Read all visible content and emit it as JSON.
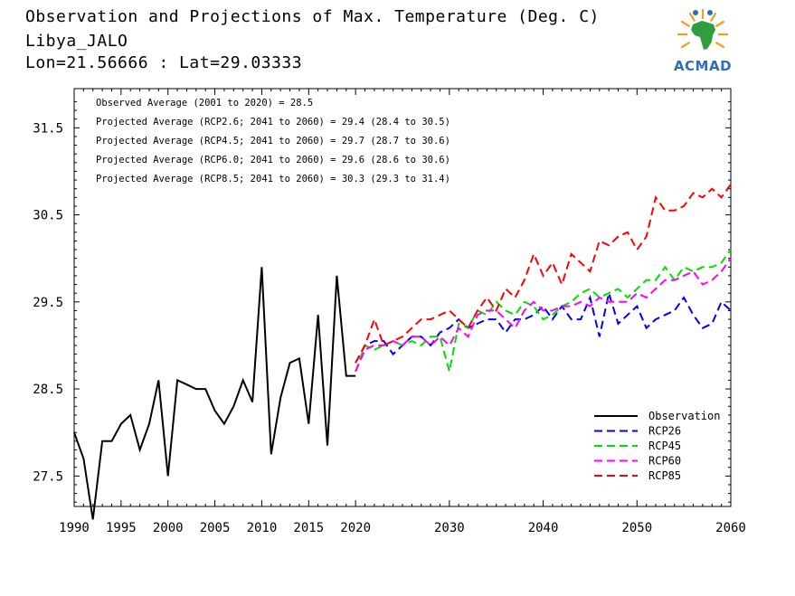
{
  "header": {
    "title": "Observation and Projections of Max. Temperature (Deg. C)",
    "station": "Libya_JALO",
    "coords": "Lon=21.56666 : Lat=29.03333"
  },
  "logo": {
    "text": "ACMAD"
  },
  "colors": {
    "observation": "#000000",
    "rcp26": "#0000ff",
    "rcp45": "#00e000",
    "rcp60": "#ff00ff",
    "rcp85": "#ff0000"
  },
  "chart_data": {
    "type": "line",
    "title": "Observation and Projections of Max. Temperature (Deg. C)",
    "xlim": [
      1990,
      2060
    ],
    "ylim": [
      27.15,
      31.95
    ],
    "x_ticks": [
      1990,
      1995,
      2000,
      2005,
      2010,
      2015,
      2020,
      2030,
      2040,
      2050,
      2060
    ],
    "y_ticks": [
      27.5,
      28.5,
      29.5,
      30.5,
      31.5
    ],
    "y_tick_labels": [
      "27.5",
      "28.5",
      "29.5",
      "30.5",
      "31.5"
    ],
    "annotations": [
      "Observed Average (2001 to 2020) = 28.5",
      "Projected Average (RCP2.6; 2041 to 2060) = 29.4 (28.4 to 30.5)",
      "Projected Average (RCP4.5; 2041 to 2060) = 29.7 (28.7 to 30.6)",
      "Projected Average (RCP6.0; 2041 to 2060) = 29.6 (28.6 to 30.6)",
      "Projected Average (RCP8.5; 2041 to 2060) = 30.3 (29.3 to 31.4)"
    ],
    "legend_position": "bottom-right",
    "series": [
      {
        "name": "Observation",
        "style": "solid",
        "color": "#000000",
        "x": [
          1990,
          1991,
          1992,
          1993,
          1994,
          1995,
          1996,
          1997,
          1998,
          1999,
          2000,
          2001,
          2002,
          2003,
          2004,
          2005,
          2006,
          2007,
          2008,
          2009,
          2010,
          2011,
          2012,
          2013,
          2014,
          2015,
          2016,
          2017,
          2018,
          2019,
          2020
        ],
        "y": [
          28.0,
          27.7,
          27.0,
          27.9,
          27.9,
          28.1,
          28.2,
          27.8,
          28.1,
          28.6,
          27.5,
          28.6,
          28.55,
          28.5,
          28.5,
          28.25,
          28.1,
          28.3,
          28.6,
          28.35,
          29.9,
          27.75,
          28.4,
          28.8,
          28.85,
          28.1,
          29.35,
          27.85,
          29.8,
          28.65,
          28.65
        ]
      },
      {
        "name": "RCP26",
        "style": "dashed",
        "color": "#0000ff",
        "x": [
          2020,
          2021,
          2022,
          2023,
          2024,
          2025,
          2026,
          2027,
          2028,
          2029,
          2030,
          2031,
          2032,
          2033,
          2034,
          2035,
          2036,
          2037,
          2038,
          2039,
          2040,
          2041,
          2042,
          2043,
          2044,
          2045,
          2046,
          2047,
          2048,
          2049,
          2050,
          2051,
          2052,
          2053,
          2054,
          2055,
          2056,
          2057,
          2058,
          2059,
          2060
        ],
        "y": [
          28.8,
          29.0,
          29.05,
          29.05,
          28.9,
          29.0,
          29.1,
          29.1,
          29.0,
          29.15,
          29.2,
          29.3,
          29.2,
          29.25,
          29.3,
          29.3,
          29.15,
          29.3,
          29.3,
          29.35,
          29.45,
          29.3,
          29.45,
          29.3,
          29.3,
          29.55,
          29.1,
          29.6,
          29.25,
          29.35,
          29.45,
          29.2,
          29.3,
          29.35,
          29.4,
          29.55,
          29.35,
          29.2,
          29.25,
          29.5,
          29.4
        ]
      },
      {
        "name": "RCP45",
        "style": "dashed",
        "color": "#00e000",
        "x": [
          2020,
          2021,
          2022,
          2023,
          2024,
          2025,
          2026,
          2027,
          2028,
          2029,
          2030,
          2031,
          2032,
          2033,
          2034,
          2035,
          2036,
          2037,
          2038,
          2039,
          2040,
          2041,
          2042,
          2043,
          2044,
          2045,
          2046,
          2047,
          2048,
          2049,
          2050,
          2051,
          2052,
          2053,
          2054,
          2055,
          2056,
          2057,
          2058,
          2059,
          2060
        ],
        "y": [
          28.7,
          29.0,
          28.95,
          29.0,
          29.05,
          29.0,
          29.05,
          29.0,
          29.1,
          29.1,
          28.7,
          29.25,
          29.2,
          29.4,
          29.35,
          29.5,
          29.4,
          29.35,
          29.5,
          29.45,
          29.3,
          29.35,
          29.45,
          29.5,
          29.6,
          29.65,
          29.55,
          29.6,
          29.65,
          29.55,
          29.65,
          29.75,
          29.75,
          29.9,
          29.75,
          29.9,
          29.85,
          29.9,
          29.9,
          29.95,
          30.1
        ]
      },
      {
        "name": "RCP60",
        "style": "dashed",
        "color": "#ff00ff",
        "x": [
          2020,
          2021,
          2022,
          2023,
          2024,
          2025,
          2026,
          2027,
          2028,
          2029,
          2030,
          2031,
          2032,
          2033,
          2034,
          2035,
          2036,
          2037,
          2038,
          2039,
          2040,
          2041,
          2042,
          2043,
          2044,
          2045,
          2046,
          2047,
          2048,
          2049,
          2050,
          2051,
          2052,
          2053,
          2054,
          2055,
          2056,
          2057,
          2058,
          2059,
          2060
        ],
        "y": [
          28.7,
          28.95,
          29.0,
          29.0,
          29.05,
          29.0,
          29.1,
          29.1,
          29.0,
          29.1,
          29.0,
          29.2,
          29.1,
          29.35,
          29.4,
          29.4,
          29.3,
          29.2,
          29.4,
          29.5,
          29.4,
          29.4,
          29.45,
          29.45,
          29.5,
          29.45,
          29.55,
          29.5,
          29.5,
          29.5,
          29.6,
          29.55,
          29.65,
          29.75,
          29.75,
          29.8,
          29.85,
          29.7,
          29.75,
          29.85,
          30.0
        ]
      },
      {
        "name": "RCP85",
        "style": "dashed",
        "color": "#ff0000",
        "x": [
          2020,
          2021,
          2022,
          2023,
          2024,
          2025,
          2026,
          2027,
          2028,
          2029,
          2030,
          2031,
          2032,
          2033,
          2034,
          2035,
          2036,
          2037,
          2038,
          2039,
          2040,
          2041,
          2042,
          2043,
          2044,
          2045,
          2046,
          2047,
          2048,
          2049,
          2050,
          2051,
          2052,
          2053,
          2054,
          2055,
          2056,
          2057,
          2058,
          2059,
          2060
        ],
        "y": [
          28.8,
          29.0,
          29.3,
          29.0,
          29.05,
          29.1,
          29.2,
          29.3,
          29.3,
          29.35,
          29.4,
          29.3,
          29.2,
          29.4,
          29.55,
          29.4,
          29.65,
          29.55,
          29.75,
          30.05,
          29.8,
          29.95,
          29.7,
          30.05,
          29.95,
          29.85,
          30.2,
          30.15,
          30.25,
          30.3,
          30.1,
          30.25,
          30.7,
          30.55,
          30.55,
          30.6,
          30.75,
          30.7,
          30.8,
          30.7,
          30.85
        ]
      }
    ]
  }
}
